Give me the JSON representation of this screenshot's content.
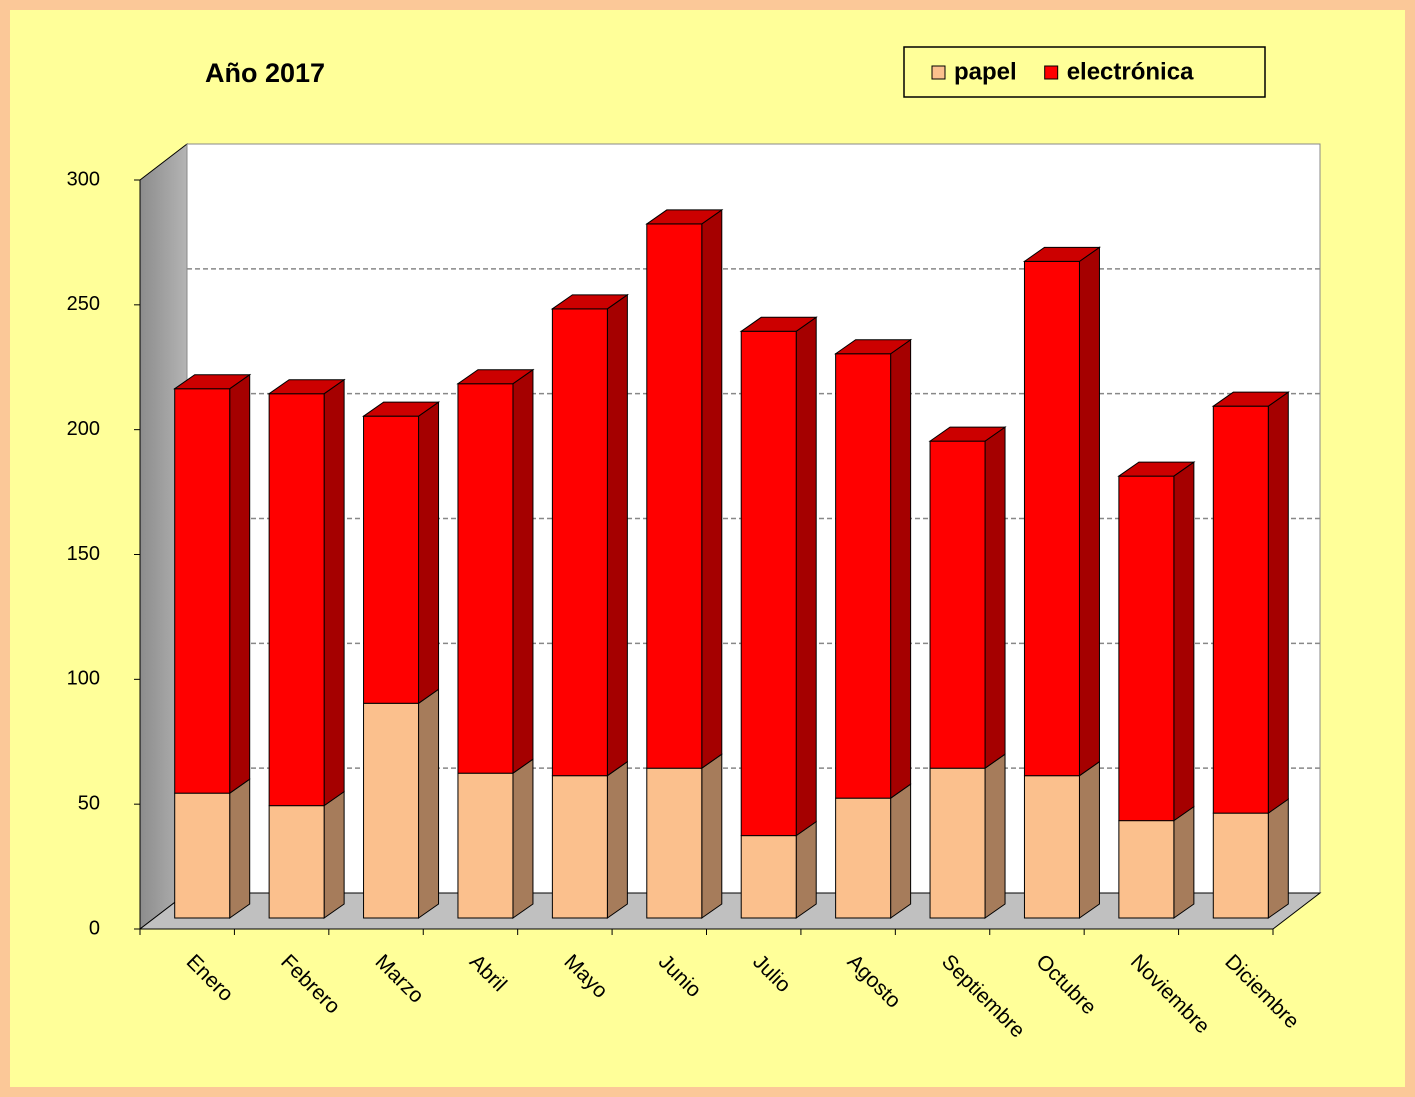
{
  "chart_data": {
    "type": "bar3d_stacked",
    "title": "Año  2017",
    "categories": [
      "Enero",
      "Febrero",
      "Marzo",
      "Abril",
      "Mayo",
      "Junio",
      "Julio",
      "Agosto",
      "Septiembre",
      "Octubre",
      "Noviembre",
      "Diciembre"
    ],
    "series": [
      {
        "name": "papel",
        "color": "#FBC08D",
        "values": [
          50,
          45,
          86,
          58,
          57,
          60,
          33,
          48,
          60,
          57,
          39,
          42
        ]
      },
      {
        "name": "electrónica",
        "color": "#FF0000",
        "values": [
          162,
          165,
          115,
          156,
          187,
          218,
          202,
          178,
          131,
          206,
          138,
          163
        ]
      }
    ],
    "ylim": [
      0,
      300
    ],
    "yticks": [
      0,
      50,
      100,
      150,
      200,
      250,
      300
    ],
    "grid": true,
    "legend": "top-right"
  }
}
